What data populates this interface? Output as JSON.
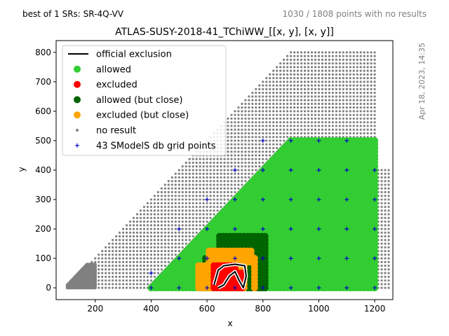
{
  "header": {
    "left_note": "best of 1 SRs: SR-4Q-VV",
    "right_note": "1030 / 1808 points with no results",
    "side_stamp": "Apr 18, 2023, 14:35"
  },
  "chart_data": {
    "type": "scatter",
    "title": "ATLAS-SUSY-2018-41_TChiWW_[[x, y], [x, y]]",
    "xlabel": "x",
    "ylabel": "y",
    "xlim": [
      60,
      1265
    ],
    "ylim": [
      -40,
      840
    ],
    "xticks": [
      200,
      400,
      600,
      800,
      1000,
      1200
    ],
    "yticks": [
      0,
      100,
      200,
      300,
      400,
      500,
      600,
      700,
      800
    ],
    "grid": false,
    "legend_position": "top-left",
    "legend": [
      {
        "label": "official exclusion",
        "marker": "line",
        "color": "#000000"
      },
      {
        "label": "allowed",
        "marker": "dot",
        "color": "#32cd32"
      },
      {
        "label": "excluded",
        "marker": "dot",
        "color": "#ff0000"
      },
      {
        "label": "allowed (but close)",
        "marker": "dot",
        "color": "#006400"
      },
      {
        "label": "excluded (but close)",
        "marker": "dot",
        "color": "#ffa500"
      },
      {
        "label": "no result",
        "marker": "small-dot",
        "color": "#808080"
      },
      {
        "label": "43 SModelS db grid points",
        "marker": "plus",
        "color": "#0000cd"
      }
    ],
    "region_rules": {
      "no_result": "upper triangle y < x - 95, x from 100 to 1250, y up to 800, plus dense low-mass cluster x 100-200, y 0-80",
      "allowed": "x 400-1200, y up to 500 bounded by diagonal",
      "excluded_but_close": "x ~570-780, y 0-130",
      "allowed_but_close": "x ~590-820, y 0-190",
      "excluded": "x ~620-730, y 0-75"
    },
    "exclusion_contour": [
      [
        625,
        10
      ],
      [
        640,
        60
      ],
      [
        660,
        75
      ],
      [
        700,
        80
      ],
      [
        735,
        75
      ],
      [
        740,
        40
      ],
      [
        730,
        0
      ],
      [
        715,
        25
      ],
      [
        700,
        55
      ],
      [
        680,
        40
      ],
      [
        660,
        10
      ],
      [
        640,
        0
      ]
    ],
    "grid_points": [
      [
        400,
        0
      ],
      [
        400,
        50
      ],
      [
        500,
        0
      ],
      [
        500,
        100
      ],
      [
        500,
        200
      ],
      [
        600,
        0
      ],
      [
        600,
        100
      ],
      [
        600,
        200
      ],
      [
        600,
        300
      ],
      [
        700,
        0
      ],
      [
        700,
        100
      ],
      [
        700,
        200
      ],
      [
        700,
        300
      ],
      [
        700,
        400
      ],
      [
        800,
        0
      ],
      [
        800,
        100
      ],
      [
        800,
        200
      ],
      [
        800,
        300
      ],
      [
        800,
        400
      ],
      [
        800,
        500
      ],
      [
        900,
        0
      ],
      [
        900,
        100
      ],
      [
        900,
        200
      ],
      [
        900,
        300
      ],
      [
        900,
        400
      ],
      [
        900,
        500
      ],
      [
        1000,
        0
      ],
      [
        1000,
        100
      ],
      [
        1000,
        200
      ],
      [
        1000,
        300
      ],
      [
        1000,
        400
      ],
      [
        1000,
        500
      ],
      [
        1100,
        0
      ],
      [
        1100,
        100
      ],
      [
        1100,
        200
      ],
      [
        1100,
        300
      ],
      [
        1100,
        400
      ],
      [
        1100,
        500
      ],
      [
        1200,
        0
      ],
      [
        1200,
        100
      ],
      [
        1200,
        200
      ],
      [
        1200,
        300
      ],
      [
        1200,
        400
      ]
    ]
  }
}
